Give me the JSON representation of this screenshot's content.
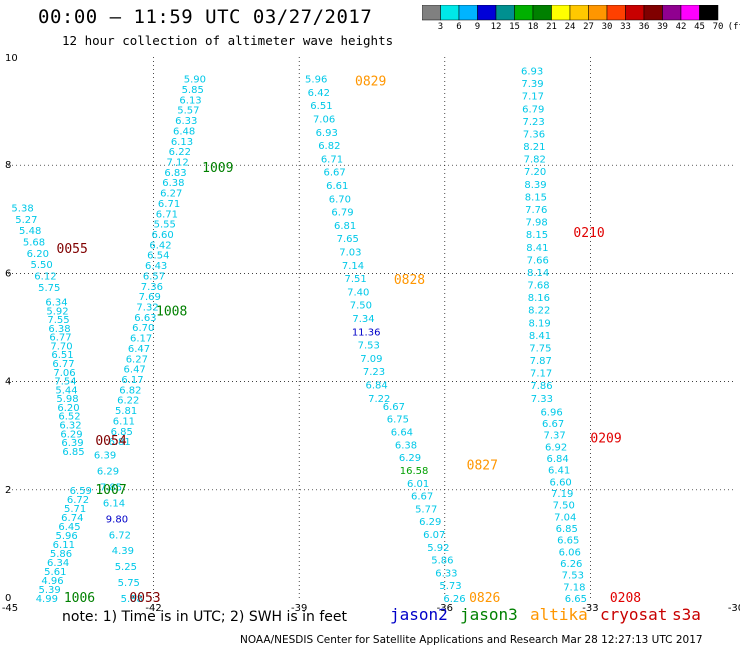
{
  "header": {
    "title": "00:00 — 11:59 UTC 03/27/2017",
    "subtitle": "12 hour collection of altimeter wave heights"
  },
  "colorbar": {
    "labels": [
      "3",
      "6",
      "9",
      "12",
      "15",
      "18",
      "21",
      "24",
      "27",
      "30",
      "33",
      "36",
      "39",
      "42",
      "45",
      "70",
      "(ft)"
    ],
    "colors": [
      "#808080",
      "#00e8e8",
      "#00b4ff",
      "#0000d8",
      "#009090",
      "#00b000",
      "#008000",
      "#ffff00",
      "#ffc800",
      "#ff9600",
      "#ff4000",
      "#c80000",
      "#800000",
      "#900090",
      "#ff00ff",
      "#000000"
    ]
  },
  "axes": {
    "x_ticks": [
      "-45",
      "-42",
      "-39",
      "-36",
      "-33",
      "-30"
    ],
    "y_ticks": [
      "0",
      "2",
      "4",
      "6",
      "8",
      "10"
    ],
    "x_range": [
      -45,
      -30
    ],
    "y_range": [
      0,
      10
    ]
  },
  "colors": {
    "cyan": "#00c8e8",
    "blue": "#0000c8",
    "green": "#008000",
    "darkred": "#800000",
    "orange": "#ff9600",
    "red": "#e00000",
    "lightgreen": "#00a000"
  },
  "times": [
    {
      "text": "0055",
      "x": -44.0,
      "y": 6.45,
      "color": "#800000"
    },
    {
      "text": "0054",
      "x": -43.2,
      "y": 2.9,
      "color": "#800000"
    },
    {
      "text": "0053",
      "x": -42.5,
      "y": 0.0,
      "color": "#800000"
    },
    {
      "text": "1009",
      "x": -41.0,
      "y": 7.95,
      "color": "#008000"
    },
    {
      "text": "1008",
      "x": -41.95,
      "y": 5.3,
      "color": "#008000"
    },
    {
      "text": "1007",
      "x": -43.2,
      "y": 2.0,
      "color": "#008000"
    },
    {
      "text": "1006",
      "x": -43.85,
      "y": 0.0,
      "color": "#008000"
    },
    {
      "text": "0829",
      "x": -37.85,
      "y": 9.55,
      "color": "#ff9600"
    },
    {
      "text": "0828",
      "x": -37.05,
      "y": 5.88,
      "color": "#ff9600"
    },
    {
      "text": "0827",
      "x": -35.55,
      "y": 2.45,
      "color": "#ff9600"
    },
    {
      "text": "0826",
      "x": -35.5,
      "y": 0.0,
      "color": "#ff9600"
    },
    {
      "text": "0210",
      "x": -33.35,
      "y": 6.75,
      "color": "#e00000"
    },
    {
      "text": "0209",
      "x": -33.0,
      "y": 2.95,
      "color": "#e00000"
    },
    {
      "text": "0208",
      "x": -32.6,
      "y": 0.0,
      "color": "#e00000"
    }
  ],
  "tracks": [
    {
      "name": "track-a",
      "x0": -44.7,
      "x1": -44.15,
      "y0": 7.22,
      "y1": 5.75,
      "values": [
        "5.38",
        "5.27",
        "5.48",
        "5.68",
        "6.20",
        "5.50",
        "6.12",
        "5.75"
      ]
    },
    {
      "name": "track-b",
      "x0": -44.0,
      "x1": -43.65,
      "y0": 5.48,
      "y1": 2.72,
      "values": [
        "6.34",
        "5.92",
        "7.55",
        "6.38",
        "6.77",
        "7.70",
        "6.51",
        "6.77",
        "7.06",
        "7.54",
        "5.44",
        "5.98",
        "6.20",
        "6.52",
        "6.32",
        "6.29",
        "6.39",
        "6.85"
      ]
    },
    {
      "name": "track-c",
      "x0": -43.5,
      "x1": -44.2,
      "y0": 2.0,
      "y1": 0.0,
      "values": [
        "6.59",
        "6.72",
        "5.71",
        "6.74",
        "6.45",
        "5.96",
        "6.11",
        "5.86",
        "6.34",
        "5.61",
        "4.96",
        "5.39",
        "4.99"
      ]
    },
    {
      "name": "track-d",
      "x0": -41.15,
      "x1": -42.7,
      "y0": 9.6,
      "y1": 2.9,
      "values": [
        "5.90",
        "5.85",
        "6.13",
        "5.57",
        "6.33",
        "6.48",
        "6.13",
        "6.22",
        "7.12",
        "6.83",
        "6.38",
        "6.27",
        "6.71",
        "6.71",
        "5.55",
        "6.60",
        "6.42",
        "6.54",
        "6.43",
        "6.57",
        "7.36",
        "7.69",
        "7.32",
        "6.63",
        "6.70",
        "6.17",
        "6.47",
        "6.27",
        "6.47",
        "6.17",
        "6.82",
        "6.22",
        "5.81",
        "6.11",
        "6.85",
        "6.81"
      ]
    },
    {
      "name": "track-e",
      "x0": -43.0,
      "x1": -42.45,
      "y0": 2.65,
      "y1": 0.0,
      "values": [
        "6.39",
        "6.29",
        "7.85",
        "6.14",
        "9.80",
        "6.72",
        "4.39",
        "5.25",
        "5.75",
        "5.88"
      ]
    },
    {
      "name": "track-f",
      "x0": -38.65,
      "x1": -37.35,
      "y0": 9.6,
      "y1": 3.7,
      "values": [
        "5.96",
        "6.42",
        "6.51",
        "7.06",
        "6.93",
        "6.82",
        "6.71",
        "6.67",
        "6.61",
        "6.70",
        "6.79",
        "6.81",
        "7.65",
        "7.03",
        "7.14",
        "7.51",
        "7.40",
        "7.50",
        "7.34",
        "11.36",
        "7.53",
        "7.09",
        "7.23",
        "6.84",
        "7.22"
      ]
    },
    {
      "name": "track-g",
      "x0": -37.05,
      "x1": -35.8,
      "y0": 3.55,
      "y1": 0.0,
      "values": [
        "6.67",
        "6.75",
        "6.64",
        "6.38",
        "6.29",
        "16.58",
        "6.01",
        "6.67",
        "5.77",
        "6.29",
        "6.07",
        "5.92",
        "5.86",
        "6.33",
        "5.73",
        "6.26"
      ]
    },
    {
      "name": "track-h",
      "x0": -34.2,
      "x1": -34.0,
      "y0": 9.75,
      "y1": 3.7,
      "values": [
        "6.93",
        "7.39",
        "7.17",
        "6.79",
        "7.23",
        "7.36",
        "8.21",
        "7.82",
        "7.20",
        "8.39",
        "8.15",
        "7.76",
        "7.98",
        "8.15",
        "8.41",
        "7.66",
        "8.14",
        "7.68",
        "8.16",
        "8.22",
        "8.19",
        "8.41",
        "7.75",
        "7.87",
        "7.17",
        "7.86",
        "7.33"
      ]
    },
    {
      "name": "track-i",
      "x0": -33.8,
      "x1": -33.3,
      "y0": 3.45,
      "y1": 0.0,
      "values": [
        "6.96",
        "6.67",
        "7.37",
        "6.92",
        "6.84",
        "6.41",
        "6.60",
        "7.19",
        "7.50",
        "7.04",
        "6.85",
        "6.65",
        "6.06",
        "6.26",
        "7.53",
        "7.18",
        "6.65"
      ]
    }
  ],
  "highlights": [
    {
      "value": "9.80",
      "color": "#0000c8"
    },
    {
      "value": "11.36",
      "color": "#0000c8"
    },
    {
      "value": "16.58",
      "color": "#00a000"
    }
  ],
  "note": "note: 1) Time is in UTC; 2) SWH is in feet",
  "legend": [
    {
      "label": "jason2",
      "color": "#0000c8",
      "left": 390
    },
    {
      "label": "jason3",
      "color": "#008000",
      "left": 460
    },
    {
      "label": "altika",
      "color": "#ff9600",
      "left": 530
    },
    {
      "label": "cryosat",
      "color": "#c80000",
      "left": 600
    },
    {
      "label": "s3a",
      "color": "#c80000",
      "left": 672
    }
  ],
  "credit": "NOAA/NESDIS Center for Satellite Applications and Research    Mar 28 12:27:13 UTC 2017"
}
